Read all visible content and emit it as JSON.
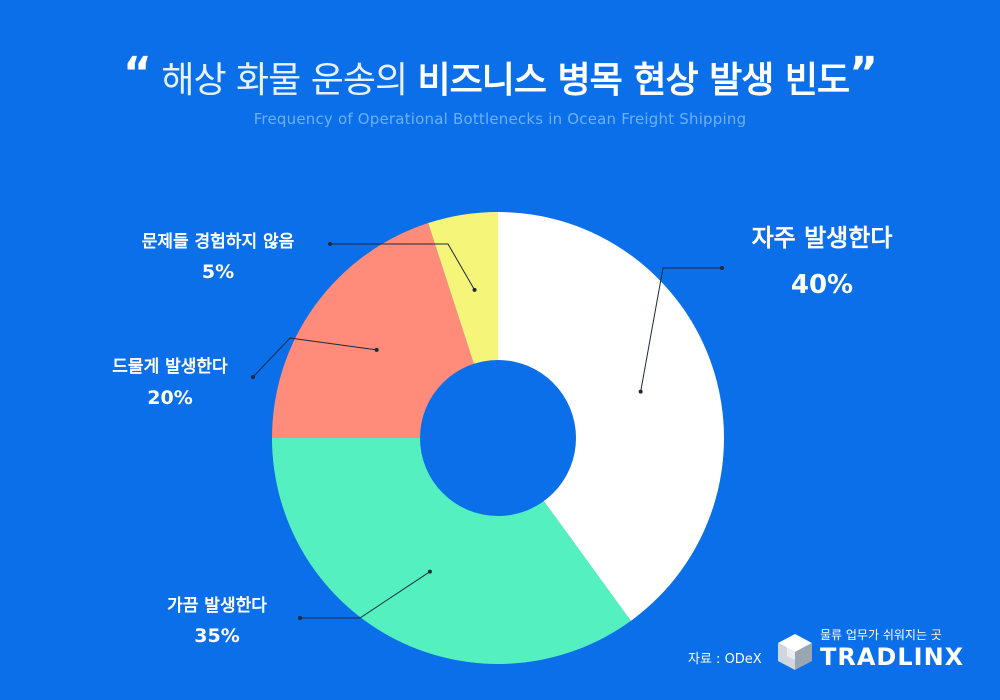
{
  "title": {
    "open_quote": "“",
    "light": "해상 화물 운송의",
    "bold": "비즈니스 병목 현상 발생 빈도",
    "close_quote": "”"
  },
  "subtitle": "Frequency of Operational Bottlenecks in Ocean Freight Shipping",
  "source": "자료 : ODeX",
  "brand": {
    "tagline": "물류 업무가 쉬워지는 곳",
    "name": "TRADLINX"
  },
  "colors": {
    "background": "#0a6fe8",
    "often": "#ffffff",
    "sometimes": "#55f0c0",
    "rarely": "#ff8b7b",
    "never": "#f5f57a",
    "hole": "#0a6fe8"
  },
  "chart_data": {
    "type": "pie",
    "donut": true,
    "categories": [
      "자주 발생한다",
      "가끔 발생한다",
      "드물게 발생한다",
      "문제들 경험하지 않음"
    ],
    "values": [
      40,
      35,
      20,
      5
    ],
    "labels": [
      "40%",
      "35%",
      "20%",
      "5%"
    ],
    "legend": "none"
  }
}
